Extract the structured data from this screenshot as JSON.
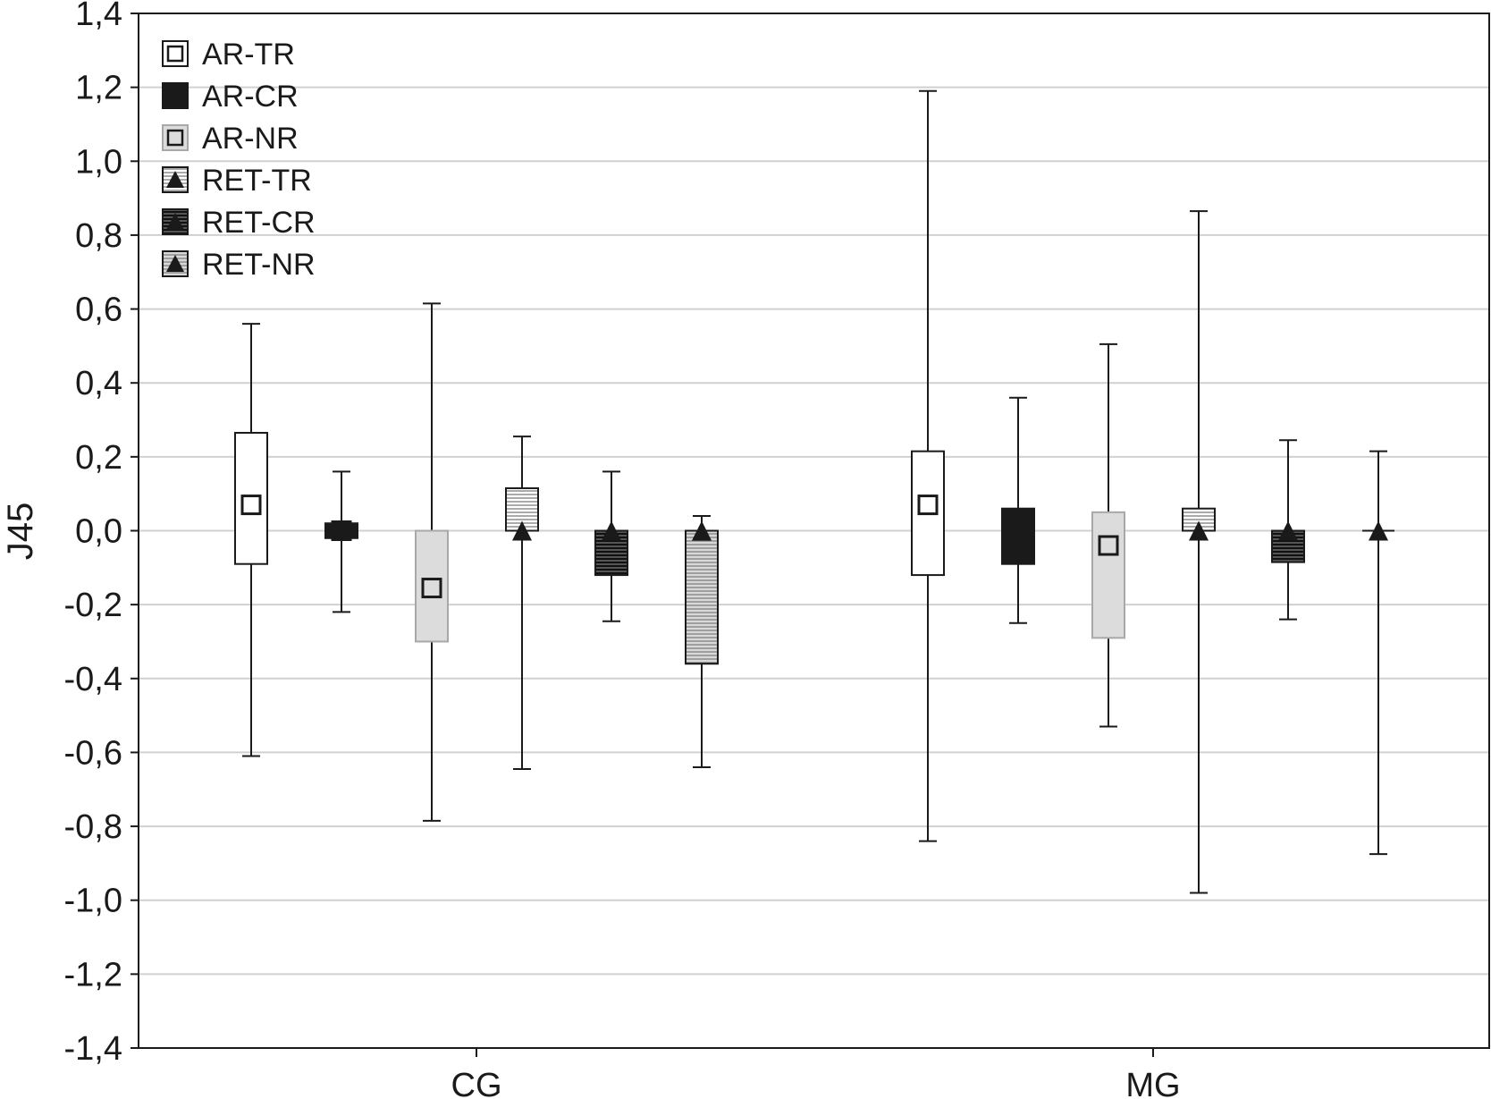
{
  "chart_data": {
    "type": "boxplot",
    "ylabel": "J45",
    "xlabel": "",
    "ylim": [
      -1.4,
      1.4
    ],
    "yticks": [
      -1.4,
      -1.2,
      -1.0,
      -0.8,
      -0.6,
      -0.4,
      -0.2,
      0.0,
      0.2,
      0.4,
      0.6,
      0.8,
      1.0,
      1.2,
      1.4
    ],
    "ytick_labels": [
      "-1,4",
      "-1,2",
      "-1,0",
      "-0,8",
      "-0,6",
      "-0,4",
      "-0,2",
      "0,0",
      "0,2",
      "0,4",
      "0,6",
      "0,8",
      "1,0",
      "1,2",
      "1,4"
    ],
    "grid": true,
    "legend_position": "top-left",
    "categories": [
      "CG",
      "MG"
    ],
    "series": [
      {
        "name": "AR-TR",
        "fill": "white",
        "marker": "square",
        "values": [
          {
            "median": 0.07,
            "q1": -0.09,
            "q3": 0.265,
            "min": -0.61,
            "max": 0.56
          },
          {
            "median": 0.07,
            "q1": -0.12,
            "q3": 0.215,
            "min": -0.84,
            "max": 1.19
          }
        ]
      },
      {
        "name": "AR-CR",
        "fill": "black",
        "marker": "square",
        "values": [
          {
            "median": 0.0,
            "q1": -0.02,
            "q3": 0.02,
            "min": -0.22,
            "max": 0.16
          },
          {
            "median": -0.02,
            "q1": -0.09,
            "q3": 0.06,
            "min": -0.25,
            "max": 0.36
          }
        ]
      },
      {
        "name": "AR-NR",
        "fill": "lightgray",
        "marker": "square",
        "values": [
          {
            "median": -0.155,
            "q1": -0.3,
            "q3": 0.0,
            "min": -0.785,
            "max": 0.615
          },
          {
            "median": -0.04,
            "q1": -0.29,
            "q3": 0.05,
            "min": -0.53,
            "max": 0.505
          }
        ]
      },
      {
        "name": "RET-TR",
        "fill": "hatch-light",
        "marker": "triangle",
        "values": [
          {
            "median": 0.0,
            "q1": 0.0,
            "q3": 0.115,
            "min": -0.645,
            "max": 0.255
          },
          {
            "median": 0.0,
            "q1": 0.0,
            "q3": 0.06,
            "min": -0.98,
            "max": 0.865
          }
        ]
      },
      {
        "name": "RET-CR",
        "fill": "hatch-dark",
        "marker": "triangle",
        "values": [
          {
            "median": 0.0,
            "q1": -0.12,
            "q3": 0.0,
            "min": -0.245,
            "max": 0.16
          },
          {
            "median": 0.0,
            "q1": -0.085,
            "q3": 0.0,
            "min": -0.24,
            "max": 0.245
          }
        ]
      },
      {
        "name": "RET-NR",
        "fill": "hatch-medium",
        "marker": "triangle",
        "values": [
          {
            "median": 0.0,
            "q1": -0.36,
            "q3": 0.0,
            "min": -0.64,
            "max": 0.04
          },
          {
            "median": 0.0,
            "q1": 0.0,
            "q3": 0.0,
            "min": -0.875,
            "max": 0.215
          }
        ]
      }
    ]
  }
}
